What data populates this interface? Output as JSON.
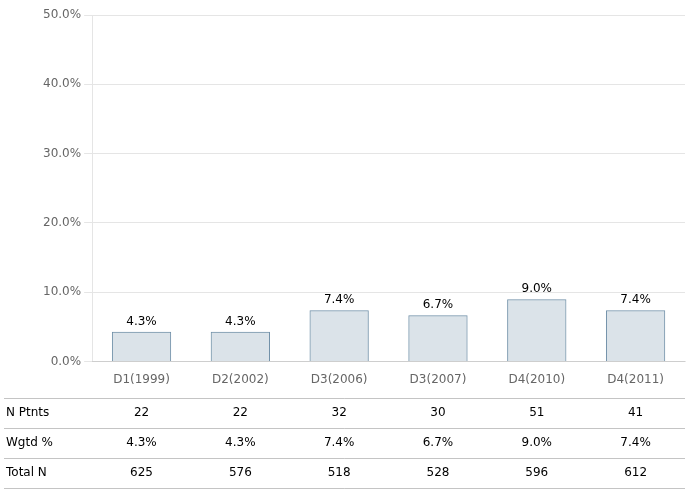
{
  "chart_data": {
    "type": "bar",
    "categories": [
      "D1(1999)",
      "D2(2002)",
      "D3(2006)",
      "D3(2007)",
      "D4(2010)",
      "D4(2011)"
    ],
    "values": [
      4.3,
      4.3,
      7.4,
      6.7,
      9.0,
      7.4
    ],
    "value_labels": [
      "4.3%",
      "4.3%",
      "7.4%",
      "6.7%",
      "9.0%",
      "7.4%"
    ],
    "data_labels": true,
    "color": "#7090a8",
    "ylim": [
      0,
      50
    ],
    "yticks": [
      {
        "value": 0,
        "label": "0.0%"
      },
      {
        "value": 10,
        "label": "10.0%"
      },
      {
        "value": 20,
        "label": "20.0%"
      },
      {
        "value": 30,
        "label": "30.0%"
      },
      {
        "value": 40,
        "label": "40.0%"
      },
      {
        "value": 50,
        "label": "50.0%"
      }
    ],
    "grid": true,
    "table": [
      {
        "name": "N Ptnts",
        "values": [
          22,
          22,
          32,
          30,
          51,
          41
        ]
      },
      {
        "name": "Wgtd %",
        "values": [
          4.3,
          4.3,
          7.4,
          6.7,
          9.0,
          7.4
        ],
        "value_labels": [
          "4.3%",
          "4.3%",
          "7.4%",
          "6.7%",
          "9.0%",
          "7.4%"
        ]
      },
      {
        "name": "Total N",
        "values": [
          625,
          576,
          518,
          528,
          596,
          612
        ]
      }
    ]
  }
}
